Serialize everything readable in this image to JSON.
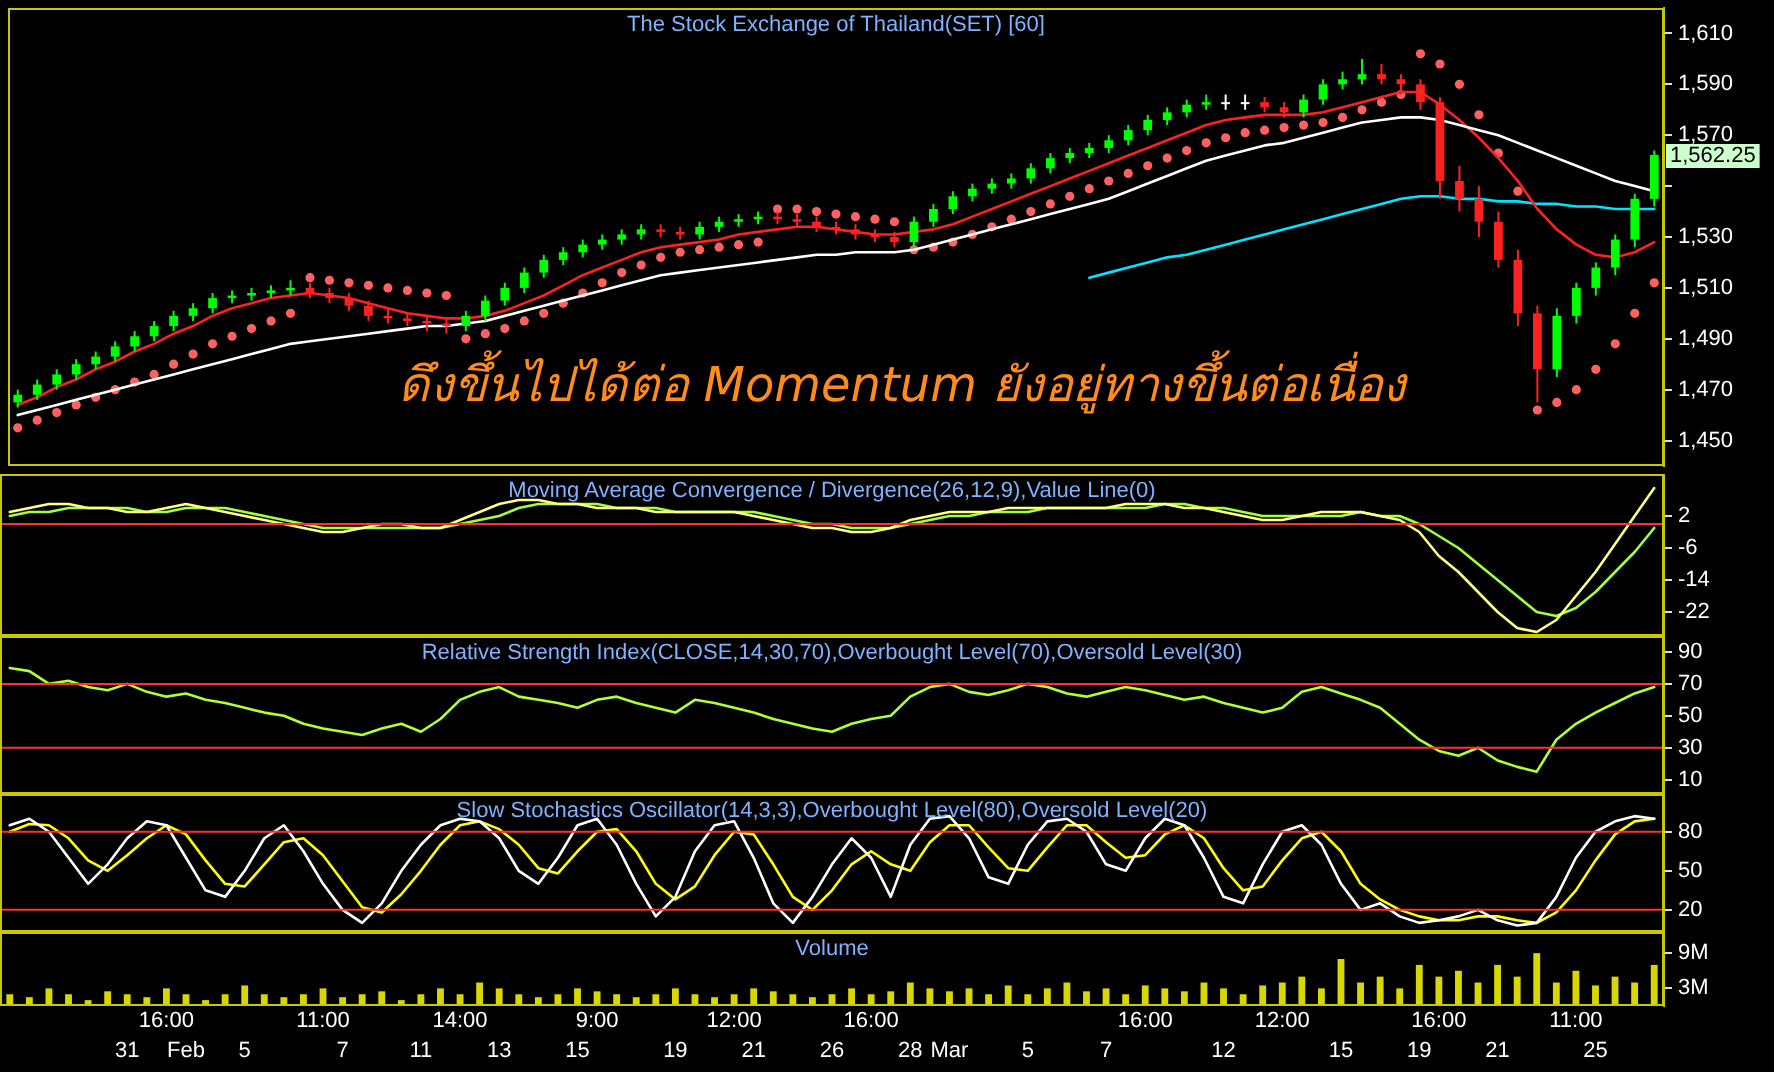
{
  "chart_data": [
    {
      "type": "candlestick",
      "title": "The Stock Exchange of Thailand(SET) [60]",
      "tick_labels": "y",
      "categories": [
        null,
        null,
        null,
        null,
        null,
        null,
        null,
        null,
        null,
        null,
        null,
        null,
        null,
        null,
        null,
        null,
        null,
        null,
        null,
        null,
        null,
        null,
        null,
        null,
        null,
        null,
        null,
        null,
        null,
        null,
        null,
        null,
        null,
        null,
        null,
        null,
        null,
        null,
        null,
        null,
        null,
        null,
        null,
        null,
        null,
        null,
        null,
        null,
        null,
        null,
        null,
        null,
        null,
        null,
        null,
        null,
        null,
        null,
        null,
        null,
        null,
        null,
        null,
        null,
        null,
        null,
        null,
        null,
        null,
        null,
        null,
        null,
        null,
        null,
        null,
        null,
        null,
        null,
        null,
        null,
        null,
        null,
        null,
        null,
        null
      ],
      "ohlc": [
        [
          1465,
          1470,
          1463,
          1468
        ],
        [
          1468,
          1474,
          1466,
          1472
        ],
        [
          1472,
          1478,
          1470,
          1476
        ],
        [
          1476,
          1482,
          1474,
          1480
        ],
        [
          1480,
          1485,
          1478,
          1483
        ],
        [
          1483,
          1489,
          1481,
          1487
        ],
        [
          1487,
          1493,
          1485,
          1491
        ],
        [
          1491,
          1497,
          1489,
          1495
        ],
        [
          1495,
          1501,
          1493,
          1499
        ],
        [
          1499,
          1504,
          1497,
          1502
        ],
        [
          1502,
          1508,
          1500,
          1506
        ],
        [
          1506,
          1509,
          1504,
          1507
        ],
        [
          1507,
          1510,
          1505,
          1508
        ],
        [
          1508,
          1511,
          1506,
          1509
        ],
        [
          1509,
          1513,
          1507,
          1510
        ],
        [
          1510,
          1512,
          1506,
          1508
        ],
        [
          1508,
          1510,
          1504,
          1506
        ],
        [
          1506,
          1508,
          1501,
          1503
        ],
        [
          1503,
          1505,
          1497,
          1499
        ],
        [
          1499,
          1502,
          1496,
          1498
        ],
        [
          1498,
          1500,
          1495,
          1497
        ],
        [
          1497,
          1499,
          1493,
          1496
        ],
        [
          1496,
          1498,
          1492,
          1495
        ],
        [
          1495,
          1501,
          1493,
          1499
        ],
        [
          1499,
          1507,
          1497,
          1505
        ],
        [
          1505,
          1512,
          1503,
          1510
        ],
        [
          1510,
          1518,
          1508,
          1516
        ],
        [
          1516,
          1523,
          1514,
          1521
        ],
        [
          1521,
          1526,
          1519,
          1524
        ],
        [
          1524,
          1529,
          1522,
          1527
        ],
        [
          1527,
          1531,
          1525,
          1529
        ],
        [
          1529,
          1533,
          1527,
          1531
        ],
        [
          1531,
          1535,
          1529,
          1533
        ],
        [
          1533,
          1535,
          1530,
          1532
        ],
        [
          1532,
          1534,
          1529,
          1531
        ],
        [
          1531,
          1536,
          1529,
          1534
        ],
        [
          1534,
          1538,
          1532,
          1536
        ],
        [
          1536,
          1539,
          1534,
          1537
        ],
        [
          1537,
          1540,
          1535,
          1538
        ],
        [
          1538,
          1540,
          1535,
          1537
        ],
        [
          1537,
          1539,
          1534,
          1536
        ],
        [
          1536,
          1538,
          1532,
          1534
        ],
        [
          1534,
          1536,
          1531,
          1533
        ],
        [
          1533,
          1535,
          1529,
          1531
        ],
        [
          1531,
          1533,
          1528,
          1530
        ],
        [
          1530,
          1532,
          1526,
          1528
        ],
        [
          1528,
          1538,
          1526,
          1536
        ],
        [
          1536,
          1543,
          1534,
          1541
        ],
        [
          1541,
          1548,
          1539,
          1546
        ],
        [
          1546,
          1551,
          1544,
          1549
        ],
        [
          1549,
          1553,
          1547,
          1551
        ],
        [
          1551,
          1555,
          1549,
          1553
        ],
        [
          1553,
          1559,
          1551,
          1557
        ],
        [
          1557,
          1563,
          1555,
          1561
        ],
        [
          1561,
          1565,
          1559,
          1563
        ],
        [
          1563,
          1567,
          1561,
          1565
        ],
        [
          1565,
          1570,
          1563,
          1568
        ],
        [
          1568,
          1574,
          1566,
          1572
        ],
        [
          1572,
          1578,
          1570,
          1576
        ],
        [
          1576,
          1581,
          1574,
          1579
        ],
        [
          1579,
          1584,
          1577,
          1582
        ],
        [
          1582,
          1586,
          1580,
          1583
        ],
        [
          1583,
          1586,
          1580,
          1583
        ],
        [
          1583,
          1586,
          1580,
          1583
        ],
        [
          1583,
          1585,
          1579,
          1581
        ],
        [
          1581,
          1583,
          1577,
          1579
        ],
        [
          1579,
          1586,
          1577,
          1584
        ],
        [
          1584,
          1592,
          1582,
          1590
        ],
        [
          1590,
          1595,
          1588,
          1592
        ],
        [
          1592,
          1600,
          1590,
          1594
        ],
        [
          1594,
          1598,
          1590,
          1592
        ],
        [
          1592,
          1594,
          1586,
          1590
        ],
        [
          1590,
          1592,
          1580,
          1583
        ],
        [
          1583,
          1585,
          1545,
          1552
        ],
        [
          1552,
          1558,
          1540,
          1545
        ],
        [
          1545,
          1550,
          1530,
          1536
        ],
        [
          1536,
          1540,
          1518,
          1521
        ],
        [
          1521,
          1525,
          1495,
          1500
        ],
        [
          1500,
          1503,
          1465,
          1478
        ],
        [
          1478,
          1502,
          1475,
          1499
        ],
        [
          1499,
          1512,
          1496,
          1510
        ],
        [
          1510,
          1520,
          1507,
          1518
        ],
        [
          1518,
          1531,
          1515,
          1529
        ],
        [
          1529,
          1547,
          1526,
          1545
        ],
        [
          1545,
          1564,
          1542,
          1562.25
        ]
      ],
      "colors": [
        "#00ff00",
        "#00ff00",
        "#00ff00",
        "#00ff00",
        "#00ff00",
        "#00ff00",
        "#00ff00",
        "#00ff00",
        "#00ff00",
        "#00ff00",
        "#00ff00",
        "#00ff00",
        "#00ff00",
        "#00ff00",
        "#00ff00",
        "#ff2020",
        "#ff2020",
        "#ff2020",
        "#ff2020",
        "#ff2020",
        "#ff2020",
        "#ff2020",
        "#ff2020",
        "#00ff00",
        "#00ff00",
        "#00ff00",
        "#00ff00",
        "#00ff00",
        "#00ff00",
        "#00ff00",
        "#00ff00",
        "#00ff00",
        "#00ff00",
        "#ff2020",
        "#ff2020",
        "#00ff00",
        "#00ff00",
        "#00ff00",
        "#00ff00",
        "#ff2020",
        "#ff2020",
        "#ff2020",
        "#ff2020",
        "#ff2020",
        "#ff2020",
        "#ff2020",
        "#00ff00",
        "#00ff00",
        "#00ff00",
        "#00ff00",
        "#00ff00",
        "#00ff00",
        "#00ff00",
        "#00ff00",
        "#00ff00",
        "#00ff00",
        "#00ff00",
        "#00ff00",
        "#00ff00",
        "#00ff00",
        "#00ff00",
        "#00ff00",
        "#ffffff",
        "#ffffff",
        "#ff2020",
        "#ff2020",
        "#00ff00",
        "#00ff00",
        "#00ff00",
        "#00ff00",
        "#ff2020",
        "#ff2020",
        "#ff2020",
        "#ff2020",
        "#ff2020",
        "#ff2020",
        "#ff2020",
        "#ff2020",
        "#ff2020",
        "#00ff00",
        "#00ff00",
        "#00ff00",
        "#00ff00",
        "#00ff00",
        "#00ff00"
      ],
      "series": [
        {
          "type": "line",
          "color": "#ffffff",
          "values": [
            1460,
            1462,
            1464,
            1466,
            1468,
            1470,
            1472,
            1474,
            1476,
            1478,
            1480,
            1482,
            1484,
            1486,
            1488,
            1489,
            1490,
            1491,
            1492,
            1493,
            1494,
            1495,
            1495,
            1496,
            1497,
            1499,
            1501,
            1503,
            1505,
            1507,
            1509,
            1511,
            1513,
            1515,
            1516,
            1517,
            1518,
            1519,
            1520,
            1521,
            1522,
            1523,
            1523,
            1524,
            1524,
            1524,
            1525,
            1527,
            1529,
            1531,
            1533,
            1535,
            1537,
            1539,
            1541,
            1543,
            1545,
            1548,
            1551,
            1554,
            1557,
            1560,
            1562,
            1564,
            1566,
            1567,
            1569,
            1571,
            1573,
            1575,
            1576,
            1577,
            1577,
            1576,
            1574,
            1572,
            1570,
            1567,
            1564,
            1561,
            1558,
            1555,
            1552,
            1550,
            1548
          ]
        },
        {
          "type": "line",
          "color": "#ff2020",
          "values": [
            1464,
            1467,
            1471,
            1474,
            1478,
            1481,
            1485,
            1488,
            1492,
            1495,
            1499,
            1502,
            1504,
            1506,
            1507,
            1508,
            1507,
            1506,
            1504,
            1502,
            1500,
            1499,
            1498,
            1498,
            1499,
            1501,
            1504,
            1507,
            1511,
            1515,
            1518,
            1521,
            1524,
            1526,
            1527,
            1528,
            1529,
            1531,
            1532,
            1533,
            1534,
            1534,
            1533,
            1532,
            1531,
            1531,
            1532,
            1533,
            1535,
            1538,
            1541,
            1544,
            1547,
            1550,
            1553,
            1556,
            1559,
            1562,
            1565,
            1568,
            1571,
            1574,
            1576,
            1577,
            1578,
            1578,
            1578,
            1579,
            1581,
            1583,
            1585,
            1587,
            1587,
            1582,
            1576,
            1569,
            1561,
            1552,
            1541,
            1533,
            1527,
            1523,
            1522,
            1524,
            1528
          ]
        },
        {
          "type": "scatter",
          "marker": "circle",
          "color": "#ff6060",
          "values": [
            1455,
            1458,
            1461,
            1464,
            1467,
            1470,
            1473,
            1476,
            1480,
            1484,
            1488,
            1491,
            1494,
            1497,
            1500,
            1514,
            1513,
            1512,
            1511,
            1510,
            1509,
            1508,
            1507,
            1490,
            1492,
            1494,
            1497,
            1500,
            1504,
            1508,
            1512,
            1516,
            1519,
            1522,
            1524,
            1525,
            1526,
            1527,
            1528,
            1541,
            1541,
            1540,
            1539,
            1538,
            1537,
            1536,
            1525,
            1526,
            1528,
            1531,
            1534,
            1537,
            1540,
            1543,
            1546,
            1549,
            1552,
            1555,
            1558,
            1561,
            1564,
            1567,
            1569,
            1571,
            1572,
            1573,
            1574,
            1575,
            1577,
            1580,
            1583,
            1586,
            1602,
            1598,
            1590,
            1578,
            1563,
            1548,
            1462,
            1465,
            1470,
            1478,
            1488,
            1500,
            1512
          ]
        },
        {
          "type": "line",
          "color": "#00e5ff",
          "values": [
            null,
            null,
            null,
            null,
            null,
            null,
            null,
            null,
            null,
            null,
            null,
            null,
            null,
            null,
            null,
            null,
            null,
            null,
            null,
            null,
            null,
            null,
            null,
            null,
            null,
            null,
            null,
            null,
            null,
            null,
            null,
            null,
            null,
            null,
            null,
            null,
            null,
            null,
            null,
            null,
            null,
            null,
            null,
            null,
            null,
            null,
            null,
            null,
            null,
            null,
            null,
            null,
            null,
            null,
            null,
            1514,
            1516,
            1518,
            1520,
            1522,
            1523,
            1525,
            1527,
            1529,
            1531,
            1533,
            1535,
            1537,
            1539,
            1541,
            1543,
            1545,
            1546,
            1546,
            1545,
            1545,
            1544,
            1544,
            1543,
            1543,
            1542,
            1542,
            1541,
            1541,
            1541
          ]
        }
      ],
      "ylim": [
        1440,
        1620
      ],
      "yticks": [
        {
          "value": 1450,
          "label": "1,450"
        },
        {
          "value": 1470,
          "label": "1,470"
        },
        {
          "value": 1490,
          "label": "1,490"
        },
        {
          "value": 1510,
          "label": "1,510"
        },
        {
          "value": 1530,
          "label": "1,530"
        },
        {
          "value": 1550,
          "label": null
        },
        {
          "value": 1570,
          "label": "1,570"
        },
        {
          "value": 1590,
          "label": "1,590"
        },
        {
          "value": 1610,
          "label": "1,610"
        }
      ],
      "annotations": [
        "ดึงขึ้นไปได้ต่อ Momentum ยังอยู่ทางขึ้นต่อเนื่อง",
        "1,562.25"
      ]
    },
    {
      "type": "line",
      "title": "Moving Average Convergence / Divergence(26,12,9),Value Line(0)",
      "tick_labels": "y",
      "categories": [
        null,
        null,
        null,
        null,
        null,
        null,
        null,
        null,
        null,
        null,
        null,
        null,
        null,
        null,
        null,
        null,
        null,
        null,
        null,
        null,
        null,
        null,
        null,
        null,
        null,
        null,
        null,
        null,
        null,
        null,
        null,
        null,
        null,
        null,
        null,
        null,
        null,
        null,
        null,
        null,
        null,
        null,
        null,
        null,
        null,
        null,
        null,
        null,
        null,
        null,
        null,
        null,
        null,
        null,
        null,
        null,
        null,
        null,
        null,
        null,
        null,
        null,
        null,
        null,
        null,
        null,
        null,
        null,
        null,
        null,
        null,
        null,
        null,
        null,
        null,
        null,
        null,
        null,
        null,
        null,
        null,
        null,
        null,
        null,
        null
      ],
      "series": [
        {
          "color": "#ffff80",
          "values": [
            3,
            4,
            5,
            5,
            4,
            4,
            3,
            3,
            4,
            5,
            4,
            3,
            2,
            1,
            0,
            -1,
            -2,
            -2,
            -1,
            0,
            0,
            -1,
            -1,
            1,
            3,
            5,
            6,
            6,
            5,
            5,
            4,
            4,
            4,
            3,
            3,
            3,
            3,
            3,
            2,
            1,
            0,
            -1,
            -1,
            -2,
            -2,
            -1,
            1,
            2,
            3,
            3,
            3,
            4,
            4,
            4,
            4,
            4,
            4,
            5,
            5,
            5,
            4,
            4,
            3,
            2,
            1,
            1,
            2,
            3,
            3,
            3,
            2,
            1,
            -2,
            -8,
            -12,
            -17,
            -22,
            -26,
            -27,
            -24,
            -18,
            -12,
            -5,
            2,
            9
          ]
        },
        {
          "color": "#a0ff40",
          "values": [
            2,
            3,
            3,
            4,
            4,
            4,
            4,
            3,
            3,
            4,
            4,
            4,
            3,
            2,
            1,
            0,
            -1,
            -1,
            -1,
            -1,
            -1,
            -1,
            -1,
            0,
            1,
            2,
            4,
            5,
            5,
            5,
            5,
            4,
            4,
            4,
            3,
            3,
            3,
            3,
            3,
            2,
            1,
            0,
            0,
            -1,
            -1,
            -1,
            0,
            1,
            2,
            2,
            3,
            3,
            3,
            4,
            4,
            4,
            4,
            4,
            4,
            5,
            5,
            4,
            4,
            3,
            2,
            2,
            2,
            2,
            2,
            3,
            2,
            2,
            0,
            -3,
            -6,
            -10,
            -14,
            -18,
            -22,
            -23,
            -21,
            -17,
            -12,
            -7,
            -1
          ]
        }
      ],
      "ylim": [
        -28,
        12.5
      ],
      "yticks": [
        -22,
        -14,
        -6,
        2
      ],
      "ref_lines": [
        {
          "axis": "y",
          "value": 0,
          "color": "#ff3030"
        }
      ]
    },
    {
      "type": "line",
      "title": "Relative Strength Index(CLOSE,14,30,70),Overbought Level(70),Oversold Level(30)",
      "tick_labels": "y",
      "categories": [
        null,
        null,
        null,
        null,
        null,
        null,
        null,
        null,
        null,
        null,
        null,
        null,
        null,
        null,
        null,
        null,
        null,
        null,
        null,
        null,
        null,
        null,
        null,
        null,
        null,
        null,
        null,
        null,
        null,
        null,
        null,
        null,
        null,
        null,
        null,
        null,
        null,
        null,
        null,
        null,
        null,
        null,
        null,
        null,
        null,
        null,
        null,
        null,
        null,
        null,
        null,
        null,
        null,
        null,
        null,
        null,
        null,
        null,
        null,
        null,
        null,
        null,
        null,
        null,
        null,
        null,
        null,
        null,
        null,
        null,
        null,
        null,
        null,
        null,
        null,
        null,
        null,
        null,
        null,
        null,
        null,
        null,
        null,
        null,
        null
      ],
      "series": [
        {
          "color": "#b0ff30",
          "values": [
            80,
            78,
            70,
            72,
            68,
            66,
            70,
            65,
            62,
            64,
            60,
            58,
            55,
            52,
            50,
            45,
            42,
            40,
            38,
            42,
            45,
            40,
            48,
            60,
            65,
            68,
            62,
            60,
            58,
            55,
            60,
            62,
            58,
            55,
            52,
            60,
            58,
            55,
            52,
            48,
            45,
            42,
            40,
            45,
            48,
            50,
            62,
            68,
            70,
            65,
            63,
            66,
            70,
            68,
            64,
            62,
            65,
            68,
            66,
            63,
            60,
            62,
            58,
            55,
            52,
            55,
            65,
            68,
            64,
            60,
            55,
            45,
            35,
            28,
            25,
            30,
            22,
            18,
            15,
            35,
            45,
            52,
            58,
            64,
            68
          ]
        }
      ],
      "ylim": [
        1,
        100
      ],
      "yticks": [
        10,
        30,
        50,
        70,
        90
      ],
      "ref_lines": [
        {
          "axis": "y",
          "value": 70,
          "color": "#ff3030"
        },
        {
          "axis": "y",
          "value": 30,
          "color": "#ff3030"
        }
      ]
    },
    {
      "type": "line",
      "title": "Slow Stochastics Oscillator(14,3,3),Overbought Level(80),Oversold Level(20)",
      "categories": [
        null,
        null,
        null,
        null,
        null,
        null,
        null,
        null,
        "16:00",
        null,
        null,
        null,
        null,
        null,
        null,
        null,
        "11:00",
        null,
        null,
        null,
        null,
        null,
        null,
        "14:00",
        null,
        null,
        null,
        null,
        null,
        null,
        "9:00",
        null,
        null,
        null,
        null,
        null,
        null,
        "12:00",
        null,
        null,
        null,
        null,
        null,
        null,
        "16:00",
        null,
        null,
        null,
        null,
        null,
        null,
        null,
        null,
        null,
        null,
        null,
        null,
        null,
        "16:00",
        null,
        null,
        null,
        null,
        null,
        null,
        "12:00",
        null,
        null,
        null,
        null,
        null,
        null,
        null,
        "16:00",
        null,
        null,
        null,
        null,
        null,
        null,
        "11:00",
        null,
        null,
        null,
        null
      ],
      "series": [
        {
          "color": "#ffffff",
          "values": [
            85,
            90,
            80,
            60,
            40,
            55,
            75,
            88,
            85,
            60,
            35,
            30,
            50,
            75,
            85,
            65,
            40,
            20,
            10,
            25,
            50,
            70,
            85,
            90,
            88,
            75,
            50,
            40,
            60,
            85,
            90,
            70,
            40,
            15,
            30,
            65,
            85,
            88,
            60,
            25,
            10,
            30,
            55,
            75,
            60,
            30,
            70,
            90,
            92,
            75,
            45,
            40,
            70,
            88,
            90,
            80,
            55,
            50,
            75,
            90,
            85,
            60,
            30,
            25,
            55,
            80,
            85,
            70,
            40,
            20,
            25,
            15,
            10,
            12,
            15,
            20,
            12,
            8,
            10,
            30,
            60,
            80,
            88,
            92,
            90
          ]
        },
        {
          "color": "#ffff00",
          "values": [
            80,
            86,
            85,
            75,
            58,
            50,
            62,
            75,
            85,
            78,
            58,
            40,
            38,
            55,
            72,
            75,
            62,
            42,
            22,
            18,
            32,
            50,
            70,
            85,
            88,
            82,
            70,
            52,
            48,
            65,
            80,
            82,
            65,
            40,
            28,
            38,
            62,
            80,
            78,
            55,
            30,
            20,
            35,
            55,
            65,
            55,
            50,
            72,
            85,
            85,
            68,
            52,
            50,
            68,
            85,
            85,
            72,
            60,
            62,
            78,
            85,
            75,
            52,
            35,
            38,
            58,
            75,
            80,
            65,
            40,
            28,
            20,
            15,
            12,
            12,
            15,
            15,
            12,
            10,
            18,
            35,
            58,
            78,
            88,
            90
          ]
        }
      ],
      "ylim": [
        3,
        109
      ],
      "yticks": [
        20,
        50,
        80
      ],
      "ref_lines": [
        {
          "axis": "y",
          "value": 80,
          "color": "#ff3030"
        },
        {
          "axis": "y",
          "value": 20,
          "color": "#ff3030"
        }
      ]
    },
    {
      "type": "bar",
      "title": "Volume",
      "color": "#d8d800",
      "categories": [
        null,
        null,
        null,
        null,
        null,
        null,
        "31",
        null,
        null,
        "Feb",
        null,
        null,
        "5",
        null,
        null,
        null,
        null,
        "7",
        null,
        null,
        null,
        "11",
        null,
        null,
        null,
        "13",
        null,
        null,
        null,
        "15",
        null,
        null,
        null,
        null,
        "19",
        null,
        null,
        null,
        "21",
        null,
        null,
        null,
        "26",
        null,
        null,
        null,
        "28",
        null,
        "Mar",
        null,
        null,
        null,
        "5",
        null,
        null,
        null,
        "7",
        null,
        null,
        null,
        null,
        null,
        "12",
        null,
        null,
        null,
        null,
        null,
        "15",
        null,
        null,
        null,
        "19",
        null,
        null,
        null,
        "21",
        null,
        null,
        null,
        null,
        "25",
        null,
        null,
        null
      ],
      "values": [
        2,
        1.5,
        3,
        2,
        1,
        2.5,
        2,
        1.5,
        3,
        2,
        1,
        2,
        3.5,
        2,
        1.5,
        2,
        3,
        1.5,
        2,
        2.5,
        1,
        2,
        3,
        2,
        4,
        3,
        2,
        1.5,
        2,
        3,
        2.5,
        2,
        1.5,
        2,
        3,
        2,
        1.5,
        2,
        3,
        2.5,
        2,
        1.5,
        2,
        3,
        2,
        2.5,
        4,
        3,
        2.5,
        3,
        2,
        3.5,
        2,
        3,
        4,
        2.5,
        3,
        2,
        3.5,
        3,
        2.5,
        4,
        3,
        2,
        3.5,
        4,
        5,
        3,
        8,
        4,
        5,
        3,
        7,
        5,
        6,
        4,
        7,
        5,
        9,
        4,
        6,
        3.5,
        5,
        4,
        7
      ],
      "ylim": [
        0,
        12.6
      ],
      "yticks": [
        {
          "value": 3,
          "label": "3M"
        },
        {
          "value": 9,
          "label": "9M"
        }
      ]
    }
  ]
}
